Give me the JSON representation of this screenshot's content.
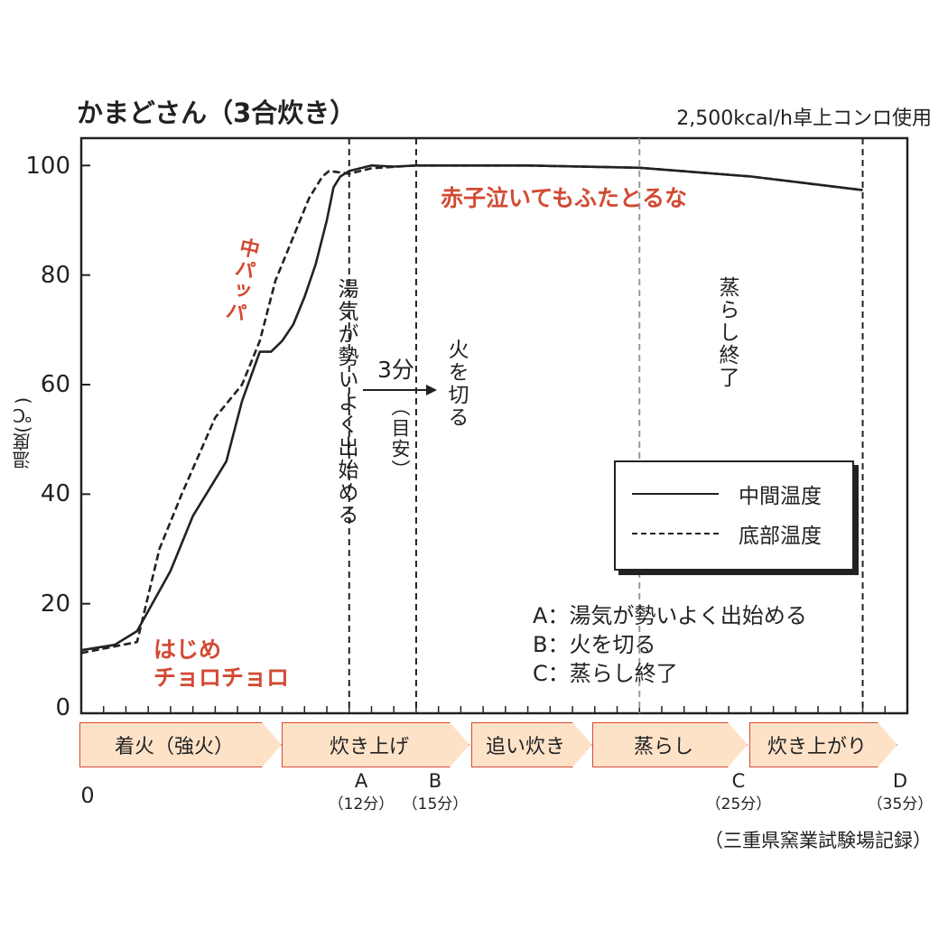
{
  "title": "かまどさん（3合炊き）",
  "subtitle": "2,500kcal/h卓上コンロ使用",
  "source": "（三重県窯業試験場記録）",
  "colors": {
    "accent_red": "#d24a33",
    "stage_fill": "#fde2c8",
    "line": "#222222"
  },
  "chart_data": {
    "type": "line",
    "ylabel": "温度(℃)",
    "xlabel": "",
    "xlim": [
      0,
      37
    ],
    "ylim": [
      0,
      105
    ],
    "yticks": [
      "0",
      "20",
      "40",
      "60",
      "80",
      "100"
    ],
    "grid": false,
    "legend_position": "center-right",
    "series": [
      {
        "name": "中間温度",
        "style": "solid",
        "x": [
          0,
          1.5,
          2.5,
          4,
          5,
          6.5,
          7.2,
          8,
          8.5,
          9,
          9.5,
          10,
          10.5,
          11,
          11.3,
          11.6,
          12,
          13,
          14,
          15,
          20,
          25,
          30,
          35
        ],
        "y": [
          11.5,
          12.5,
          15,
          26,
          36,
          46,
          57,
          66,
          66,
          68,
          71,
          76,
          82,
          90,
          96,
          98,
          99,
          100,
          99.8,
          100,
          100,
          99.6,
          98,
          95.5
        ]
      },
      {
        "name": "底部温度",
        "style": "dashed",
        "x": [
          0,
          2.5,
          3.5,
          4.5,
          6,
          7.2,
          8,
          8.7,
          9.4,
          10.2,
          10.8,
          11.1,
          12,
          13,
          15,
          20,
          25,
          30,
          35
        ],
        "y": [
          11,
          13,
          30,
          40,
          54,
          60,
          68,
          79,
          86,
          94,
          98,
          99,
          98.5,
          99.5,
          100,
          100,
          99.6,
          98,
          95.5
        ]
      }
    ],
    "markers": [
      {
        "id": "A",
        "time": 12,
        "label": "A",
        "sub": "（12分）",
        "note": "湯気が勢いよく出始める"
      },
      {
        "id": "B",
        "time": 15,
        "label": "B",
        "sub": "（15分）",
        "note": "火を切る"
      },
      {
        "id": "C",
        "time": 25,
        "label": "C",
        "sub": "（25分）",
        "note": "蒸らし終了"
      },
      {
        "id": "D",
        "time": 35,
        "label": "D",
        "sub": "（35分）"
      }
    ],
    "interval_label": "3分",
    "interval_note": "（目安）",
    "annotations": {
      "hajime_1": "はじめ",
      "hajime_2": "チョロチョロ",
      "naka_pappa": "中パッパ",
      "akago": "赤子泣いてもふたとるな"
    },
    "abc_legend": [
      "A：湯気が勢いよく出始める",
      "B：火を切る",
      "C：蒸らし終了"
    ],
    "origin_label": "0",
    "stages": [
      "着火（強火）",
      "炊き上げ",
      "追い炊き",
      "蒸らし",
      "炊き上がり"
    ]
  }
}
